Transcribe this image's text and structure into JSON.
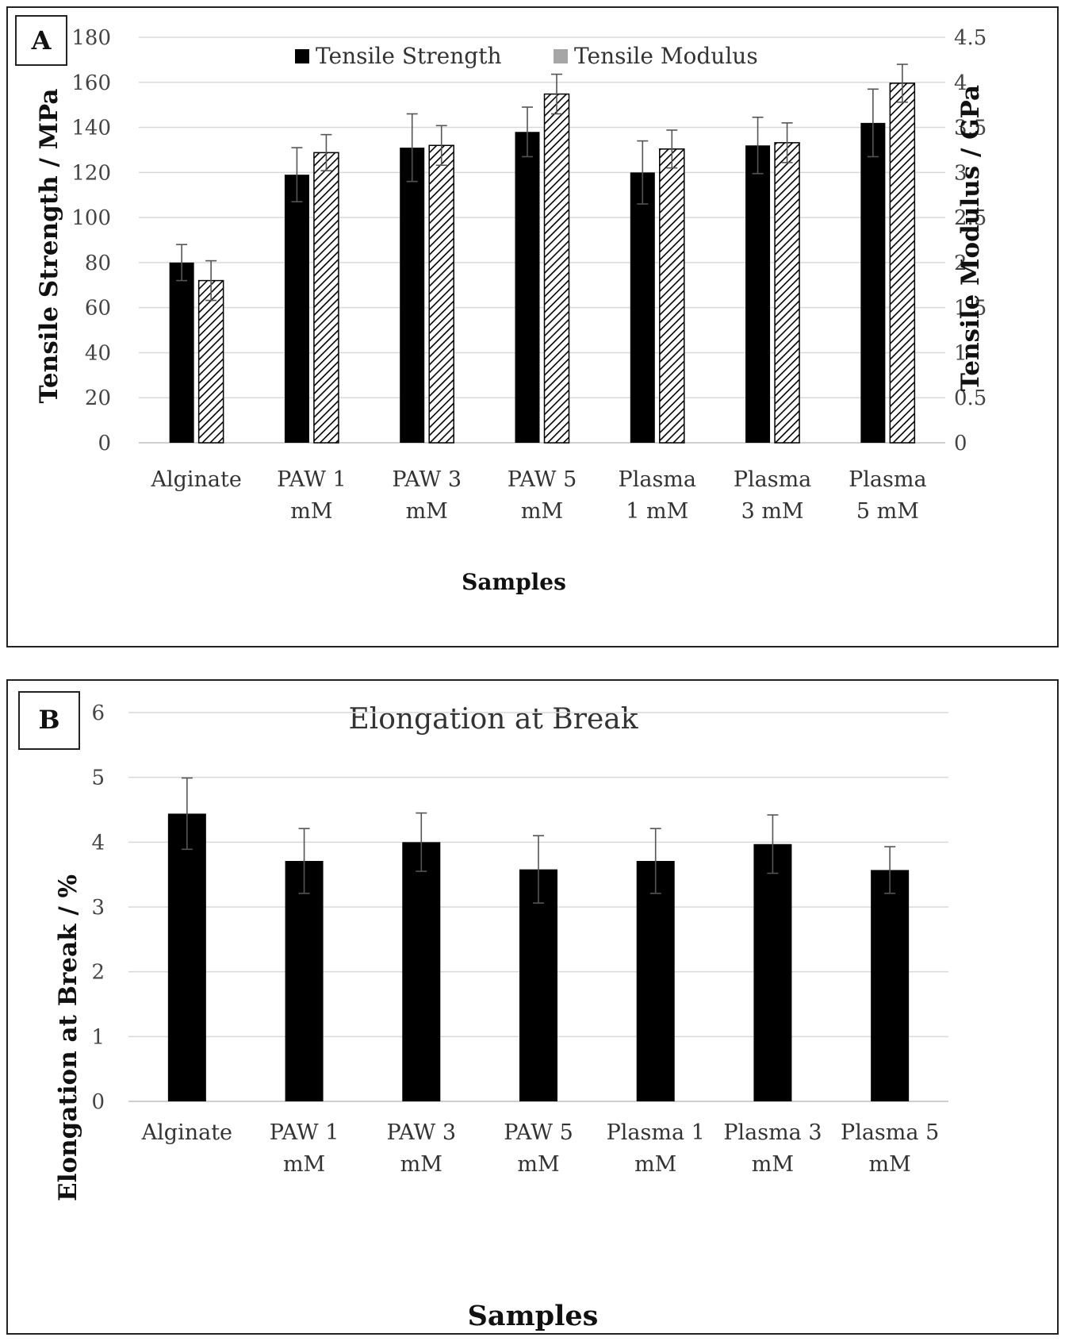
{
  "chart_data": [
    {
      "panel_label": "A",
      "type": "bar",
      "title": "",
      "xlabel": "Samples",
      "ylabel": "Tensile Strength / MPa",
      "y2label": "Tensile Modulus / GPa",
      "ylim": [
        0,
        180
      ],
      "y2lim": [
        0,
        4.5
      ],
      "yticks": [
        "0",
        "20",
        "40",
        "60",
        "80",
        "100",
        "120",
        "140",
        "160",
        "180"
      ],
      "y2ticks": [
        "0",
        "0.5",
        "1",
        "1.5",
        "2",
        "2.5",
        "3",
        "3.5",
        "4",
        "4.5"
      ],
      "grid": true,
      "legend_position": "top",
      "categories": [
        [
          "Alginate"
        ],
        [
          "PAW 1",
          "mM"
        ],
        [
          "PAW 3",
          "mM"
        ],
        [
          "PAW 5",
          "mM"
        ],
        [
          "Plasma",
          "1 mM"
        ],
        [
          "Plasma",
          "3 mM"
        ],
        [
          "Plasma",
          "5 mM"
        ]
      ],
      "series": [
        {
          "name": "Tensile Strength",
          "axis": "left",
          "color": "#000000",
          "fill": "solid",
          "values": [
            80,
            119,
            131,
            138,
            120,
            132,
            142
          ],
          "errors": [
            8,
            12,
            15,
            11,
            14,
            12.5,
            15
          ]
        },
        {
          "name": "Tensile Modulus",
          "axis": "right",
          "color": "#000000",
          "fill": "hatched",
          "legend_color": "#a6a6a6",
          "values": [
            1.8,
            3.22,
            3.3,
            3.87,
            3.26,
            3.33,
            3.99
          ],
          "errors": [
            0.22,
            0.2,
            0.22,
            0.22,
            0.21,
            0.22,
            0.21
          ]
        }
      ]
    },
    {
      "panel_label": "B",
      "type": "bar",
      "title": "Elongation at Break",
      "xlabel": "Samples",
      "ylabel": "Elongation at Break / %",
      "ylim": [
        0,
        6
      ],
      "yticks": [
        "0",
        "1",
        "2",
        "3",
        "4",
        "5",
        "6"
      ],
      "grid": true,
      "categories": [
        [
          "Alginate"
        ],
        [
          "PAW 1",
          "mM"
        ],
        [
          "PAW 3",
          "mM"
        ],
        [
          "PAW 5",
          "mM"
        ],
        [
          "Plasma 1",
          "mM"
        ],
        [
          "Plasma 3",
          "mM"
        ],
        [
          "Plasma 5",
          "mM"
        ]
      ],
      "series": [
        {
          "color": "#000000",
          "values": [
            4.44,
            3.71,
            4.0,
            3.58,
            3.71,
            3.97,
            3.57
          ],
          "errors": [
            0.55,
            0.5,
            0.45,
            0.52,
            0.5,
            0.45,
            0.36
          ]
        }
      ]
    }
  ]
}
